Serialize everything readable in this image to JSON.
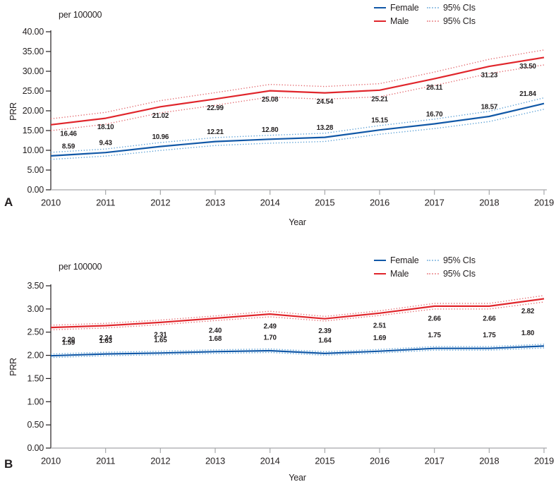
{
  "chart_data": [
    {
      "type": "line",
      "panel": "A",
      "title": "per 100000",
      "xlabel": "Year",
      "ylabel": "PRR",
      "x": [
        2010,
        2011,
        2012,
        2013,
        2014,
        2015,
        2016,
        2017,
        2018,
        2019
      ],
      "ylim": [
        0,
        40
      ],
      "ytick_step": 5,
      "grid": false,
      "legend_position": "top-right",
      "legend": [
        {
          "label": "Female",
          "style": "solid",
          "color": "#1158a7"
        },
        {
          "label": "95% CIs",
          "style": "dotted",
          "color": "#9cc6e6"
        },
        {
          "label": "Male",
          "style": "solid",
          "color": "#e0252b"
        },
        {
          "label": "95% CIs",
          "style": "dotted",
          "color": "#efa3a6"
        }
      ],
      "series": [
        {
          "name": "Female",
          "color": "#1158a7",
          "ci_color": "#5aa0d6",
          "label_side": "above",
          "values": [
            8.59,
            9.43,
            10.96,
            12.21,
            12.8,
            13.28,
            15.15,
            16.7,
            18.57,
            21.84
          ],
          "ci_delta": [
            0.9,
            0.9,
            1.0,
            1.0,
            1.0,
            1.05,
            1.1,
            1.2,
            1.3,
            1.45
          ]
        },
        {
          "name": "Male",
          "color": "#e0252b",
          "ci_color": "#e4696f",
          "label_side": "below",
          "values": [
            16.46,
            18.1,
            21.02,
            22.99,
            25.08,
            24.54,
            25.21,
            28.11,
            31.23,
            33.5
          ],
          "ci_delta": [
            1.5,
            1.5,
            1.55,
            1.6,
            1.6,
            1.6,
            1.65,
            1.7,
            1.8,
            1.9
          ]
        }
      ]
    },
    {
      "type": "line",
      "panel": "B",
      "title": "per 100000",
      "xlabel": "Year",
      "ylabel": "PRR",
      "x": [
        2010,
        2011,
        2012,
        2013,
        2014,
        2015,
        2016,
        2017,
        2018,
        2019
      ],
      "ylim": [
        0,
        3.5
      ],
      "ytick_step": 0.5,
      "grid": false,
      "legend_position": "top-right",
      "legend": [
        {
          "label": "Female",
          "style": "solid",
          "color": "#1158a7"
        },
        {
          "label": "95% CIs",
          "style": "dotted",
          "color": "#9cc6e6"
        },
        {
          "label": "Male",
          "style": "solid",
          "color": "#e0252b"
        },
        {
          "label": "95% CIs",
          "style": "dotted",
          "color": "#efa3a6"
        }
      ],
      "series": [
        {
          "name": "Female",
          "color": "#1158a7",
          "ci_color": "#5aa0d6",
          "label_side": "above",
          "values": [
            1.59,
            1.63,
            1.65,
            1.68,
            1.7,
            1.64,
            1.69,
            1.75,
            1.75,
            1.8
          ],
          "plotted_values": [
            1.99,
            2.03,
            2.05,
            2.08,
            2.1,
            2.04,
            2.09,
            2.15,
            2.15,
            2.2
          ],
          "ci_delta": [
            0.038,
            0.038,
            0.038,
            0.038,
            0.038,
            0.038,
            0.038,
            0.038,
            0.038,
            0.04
          ]
        },
        {
          "name": "Male",
          "color": "#e0252b",
          "ci_color": "#e4696f",
          "label_side": "below",
          "values": [
            2.2,
            2.24,
            2.31,
            2.4,
            2.49,
            2.39,
            2.51,
            2.66,
            2.66,
            2.82
          ],
          "plotted_values": [
            2.6,
            2.64,
            2.71,
            2.8,
            2.89,
            2.79,
            2.91,
            3.06,
            3.06,
            3.22
          ],
          "ci_delta": [
            0.05,
            0.05,
            0.05,
            0.05,
            0.06,
            0.05,
            0.05,
            0.06,
            0.06,
            0.07
          ]
        }
      ]
    }
  ]
}
